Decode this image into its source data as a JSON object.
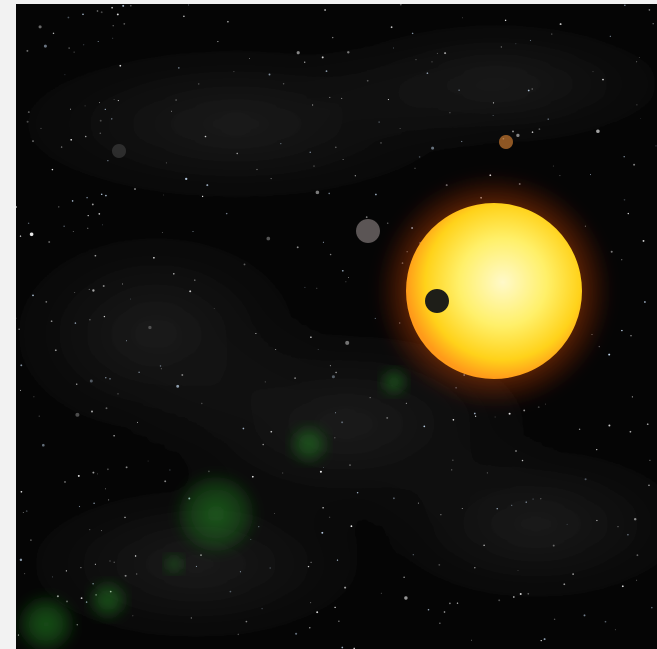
{
  "image": {
    "subject": "space",
    "colors": {
      "page_background": "#f2f2f2",
      "space": "#050505",
      "nebula": "#3a3a3a",
      "star_core": "#fff9c9",
      "star_mid": "#ffe23a",
      "star_edge": "#ff9a1a",
      "star_glow": "#ff6a00",
      "planet": "#1e1e18",
      "lens_flare": "#1f7a1f",
      "small_orange_moon": "#b06a2a",
      "small_grey_moon": "#6b6464"
    },
    "icons": [
      "star-icon",
      "planet-icon",
      "moon-icon",
      "lens-flare-icon",
      "nebula-icon",
      "starfield-icon"
    ]
  }
}
